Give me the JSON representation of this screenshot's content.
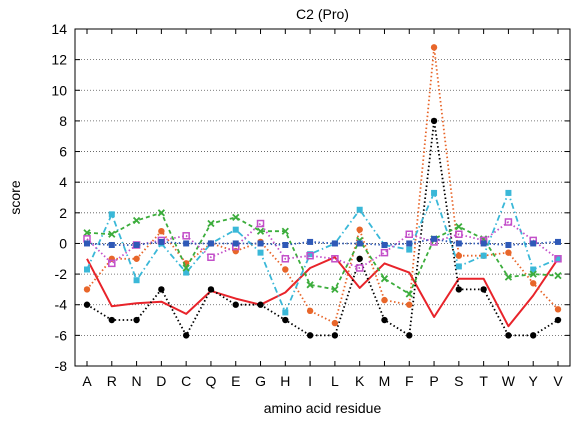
{
  "chart_data": {
    "type": "line",
    "title": "C2 (Pro)",
    "xlabel": "amino acid residue",
    "ylabel": "score",
    "ylim": [
      -8,
      14
    ],
    "yticks": [
      -8,
      -6,
      -4,
      -2,
      0,
      2,
      4,
      6,
      8,
      10,
      12,
      14
    ],
    "grid": "horizontal dotted",
    "categories": [
      "A",
      "R",
      "N",
      "D",
      "C",
      "Q",
      "E",
      "G",
      "H",
      "I",
      "L",
      "K",
      "M",
      "F",
      "P",
      "S",
      "T",
      "W",
      "Y",
      "V"
    ],
    "series": [
      {
        "color": "#e8232a",
        "style": "solid",
        "marker": "none",
        "values": [
          -1.0,
          -4.1,
          -3.9,
          -3.8,
          -4.6,
          -3.1,
          -3.6,
          -4.0,
          -3.2,
          -1.6,
          -0.9,
          -2.9,
          -1.3,
          -1.9,
          -4.8,
          -2.3,
          -2.3,
          -5.4,
          -3.4,
          -1.0
        ]
      },
      {
        "color": "#000000",
        "style": "dotted",
        "marker": "circle",
        "values": [
          -4.0,
          -5.0,
          -5.0,
          -3.0,
          -6.0,
          -3.0,
          -4.0,
          -4.0,
          -5.0,
          -6.0,
          -6.0,
          -1.0,
          -5.0,
          -6.0,
          8.0,
          -3.0,
          -3.0,
          -6.0,
          -6.0,
          -5.0
        ]
      },
      {
        "color": "#e8662a",
        "style": "dotted",
        "marker": "circle",
        "values": [
          -3.0,
          -1.0,
          -1.0,
          0.8,
          -1.3,
          0.0,
          -0.5,
          0.1,
          -1.7,
          -4.4,
          -5.2,
          0.9,
          -3.7,
          -4.0,
          12.8,
          -0.8,
          -0.8,
          -0.6,
          -2.6,
          -4.3
        ]
      },
      {
        "color": "#3ab8d8",
        "style": "dash-dot",
        "marker": "square",
        "values": [
          -1.7,
          1.9,
          -2.4,
          0.0,
          -1.9,
          0.0,
          0.9,
          -0.6,
          -4.5,
          -0.7,
          0.0,
          2.2,
          -0.1,
          -0.4,
          3.3,
          -1.5,
          -0.8,
          3.3,
          -1.7,
          -1.0
        ]
      },
      {
        "color": "#3cad3c",
        "style": "dashed",
        "marker": "x",
        "values": [
          0.7,
          0.6,
          1.5,
          2.0,
          -1.6,
          1.3,
          1.7,
          0.8,
          0.8,
          -2.7,
          -3.0,
          0.2,
          -2.3,
          -3.3,
          0.3,
          1.1,
          0.3,
          -2.2,
          -2.0,
          -2.1
        ]
      },
      {
        "color": "#c34fc9",
        "style": "dotted",
        "marker": "square-open",
        "values": [
          0.3,
          -1.3,
          -0.1,
          0.2,
          0.5,
          -0.9,
          -0.2,
          1.3,
          -1.0,
          -0.8,
          -1.0,
          -1.6,
          -0.6,
          0.6,
          0.1,
          0.6,
          0.2,
          1.4,
          0.2,
          -1.0
        ]
      },
      {
        "color": "#2e59b7",
        "style": "dotted",
        "marker": "square",
        "values": [
          0.0,
          -0.1,
          -0.1,
          0.1,
          0.0,
          0.0,
          0.0,
          0.0,
          -0.1,
          0.1,
          0.0,
          0.0,
          -0.1,
          0.0,
          0.3,
          0.0,
          0.0,
          -0.1,
          0.0,
          0.1
        ]
      }
    ]
  }
}
